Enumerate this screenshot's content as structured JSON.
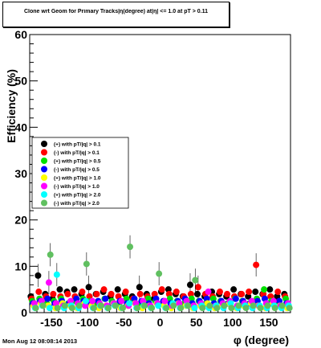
{
  "title": "Clone wrt Geom for Primary Tracks|η(degree) at|η| <= 1.0 at pT > 0.11",
  "footer": "Mon Aug 12 08:08:14 2013",
  "chart_data": {
    "type": "scatter",
    "xlabel": "φ (degree)",
    "ylabel": "Efficiency (%)",
    "xlim": [
      -180,
      180
    ],
    "ylim": [
      0,
      60
    ],
    "xticks": [
      -150,
      -100,
      -50,
      0,
      50,
      100,
      150
    ],
    "yticks": [
      0,
      10,
      20,
      30,
      40,
      50,
      60
    ],
    "grid": false,
    "legend_position": "left-middle",
    "series": [
      {
        "name": "(+) with pT/|q| > 0.1",
        "color": "#000000",
        "x": [
          -175,
          -165,
          -155,
          -145,
          -135,
          -125,
          -115,
          -105,
          -95,
          -85,
          -75,
          -65,
          -55,
          -45,
          -35,
          -25,
          -15,
          -5,
          5,
          15,
          25,
          35,
          45,
          55,
          65,
          75,
          85,
          95,
          105,
          115,
          125,
          135,
          145,
          155,
          165,
          175
        ],
        "y": [
          3.5,
          8.0,
          4.0,
          3.0,
          5.0,
          4.5,
          5.0,
          4.0,
          5.5,
          4.0,
          4.5,
          3.5,
          5.0,
          4.0,
          3.5,
          5.5,
          4.0,
          3.0,
          4.5,
          5.0,
          4.0,
          3.5,
          6.0,
          4.0,
          3.5,
          4.5,
          4.0,
          3.5,
          5.0,
          4.0,
          3.5,
          4.5,
          4.0,
          5.0,
          3.5,
          4.0
        ]
      },
      {
        "name": "(-) with pT/|q| > 0.1",
        "color": "#ff0000",
        "x": [
          -175,
          -165,
          -155,
          -145,
          -135,
          -125,
          -115,
          -105,
          -95,
          -85,
          -75,
          -65,
          -55,
          -45,
          -35,
          -25,
          -15,
          -5,
          5,
          15,
          25,
          35,
          45,
          55,
          65,
          75,
          85,
          95,
          105,
          115,
          125,
          135,
          145,
          155,
          165,
          175
        ],
        "y": [
          3.0,
          4.5,
          3.5,
          4.0,
          3.5,
          4.0,
          3.5,
          4.5,
          3.5,
          4.0,
          5.0,
          4.0,
          3.5,
          4.5,
          3.0,
          4.0,
          3.5,
          4.0,
          5.0,
          4.0,
          4.5,
          3.5,
          4.0,
          5.5,
          4.0,
          3.5,
          4.5,
          4.0,
          3.5,
          4.0,
          4.5,
          10.3,
          4.0,
          3.5,
          4.5,
          3.5
        ]
      },
      {
        "name": "(+) with pT/|q| > 0.5",
        "color": "#00e000",
        "x": [
          -175,
          -165,
          -155,
          -145,
          -135,
          -125,
          -115,
          -105,
          -95,
          -85,
          -75,
          -65,
          -55,
          -45,
          -35,
          -25,
          -15,
          -5,
          5,
          15,
          25,
          35,
          45,
          55,
          65,
          75,
          85,
          95,
          105,
          115,
          125,
          135,
          145,
          155,
          165,
          175
        ],
        "y": [
          2.5,
          3.0,
          2.0,
          2.5,
          3.0,
          2.0,
          2.5,
          3.0,
          2.5,
          2.0,
          3.0,
          2.5,
          2.0,
          3.0,
          2.5,
          2.0,
          3.0,
          2.5,
          2.0,
          3.0,
          2.5,
          2.0,
          3.0,
          2.5,
          2.0,
          3.0,
          2.5,
          2.0,
          3.0,
          2.5,
          2.0,
          3.0,
          5.0,
          2.5,
          2.0,
          3.0
        ]
      },
      {
        "name": "(-) with pT/|q| > 0.5",
        "color": "#0000ff",
        "x": [
          -175,
          -165,
          -155,
          -145,
          -135,
          -125,
          -115,
          -105,
          -95,
          -85,
          -75,
          -65,
          -55,
          -45,
          -35,
          -25,
          -15,
          -5,
          5,
          15,
          25,
          35,
          45,
          55,
          65,
          75,
          85,
          95,
          105,
          115,
          125,
          135,
          145,
          155,
          165,
          175
        ],
        "y": [
          2.0,
          2.5,
          3.0,
          2.0,
          2.5,
          2.0,
          3.0,
          2.5,
          2.0,
          2.5,
          3.0,
          2.0,
          2.5,
          2.0,
          3.0,
          2.5,
          2.0,
          3.0,
          2.5,
          2.0,
          2.5,
          3.0,
          2.0,
          2.5,
          3.0,
          2.0,
          2.5,
          2.0,
          3.0,
          2.5,
          2.0,
          2.5,
          3.0,
          2.0,
          2.5,
          2.0
        ]
      },
      {
        "name": "(+) with pT/|q| > 1.0",
        "color": "#ffff00",
        "x": [
          -175,
          -165,
          -155,
          -145,
          -135,
          -125,
          -115,
          -105,
          -95,
          -85,
          -75,
          -65,
          -55,
          -45,
          -35,
          -25,
          -15,
          -5,
          5,
          15,
          25,
          35,
          45,
          55,
          65,
          75,
          85,
          95,
          105,
          115,
          125,
          135,
          145,
          155,
          165,
          175
        ],
        "y": [
          1.5,
          2.0,
          1.5,
          1.0,
          2.0,
          1.5,
          1.0,
          2.0,
          1.5,
          1.0,
          1.5,
          2.0,
          1.0,
          1.5,
          2.0,
          1.0,
          1.5,
          2.0,
          1.5,
          1.0,
          2.0,
          1.5,
          1.0,
          1.5,
          2.0,
          1.0,
          1.5,
          2.0,
          1.0,
          1.5,
          2.0,
          1.5,
          1.0,
          2.0,
          1.5,
          1.0
        ]
      },
      {
        "name": "(-) with pT/|q| > 1.0",
        "color": "#ff00ff",
        "x": [
          -175,
          -165,
          -155,
          -145,
          -135,
          -125,
          -115,
          -105,
          -95,
          -85,
          -75,
          -65,
          -55,
          -45,
          -35,
          -25,
          -15,
          -5,
          5,
          15,
          25,
          35,
          45,
          55,
          65,
          75,
          85,
          95,
          105,
          115,
          125,
          135,
          145,
          155,
          165,
          175
        ],
        "y": [
          2.0,
          2.5,
          6.5,
          2.0,
          1.5,
          2.5,
          2.0,
          1.5,
          2.5,
          2.0,
          1.5,
          2.0,
          2.5,
          1.5,
          2.0,
          2.5,
          1.5,
          2.0,
          2.5,
          1.5,
          2.0,
          2.5,
          1.5,
          2.0,
          4.5,
          1.5,
          2.0,
          2.5,
          1.5,
          2.0,
          2.5,
          1.5,
          2.0,
          2.5,
          1.5,
          2.0
        ]
      },
      {
        "name": "(+) with pT/|q| > 2.0",
        "color": "#00ffff",
        "x": [
          -175,
          -165,
          -155,
          -145,
          -135,
          -125,
          -115,
          -105,
          -95,
          -85,
          -75,
          -65,
          -55,
          -45,
          -35,
          -25,
          -15,
          -5,
          5,
          15,
          25,
          35,
          45,
          55,
          65,
          75,
          85,
          95,
          105,
          115,
          125,
          135,
          145,
          155,
          165,
          175
        ],
        "y": [
          1.0,
          1.5,
          1.0,
          8.2,
          1.0,
          1.5,
          1.0,
          2.5,
          1.0,
          1.5,
          1.0,
          1.5,
          1.0,
          2.0,
          1.0,
          1.5,
          1.0,
          1.5,
          1.0,
          2.0,
          1.0,
          1.5,
          1.0,
          1.5,
          1.0,
          1.5,
          1.0,
          2.0,
          1.0,
          1.5,
          1.0,
          1.5,
          1.0,
          1.5,
          1.0,
          1.5
        ]
      },
      {
        "name": "(-) with pT/|q| > 2.0",
        "color": "#60c060",
        "x": [
          -175,
          -165,
          -155,
          -145,
          -135,
          -125,
          -115,
          -105,
          -95,
          -85,
          -75,
          -65,
          -55,
          -45,
          -35,
          -25,
          -15,
          -5,
          5,
          15,
          25,
          35,
          45,
          55,
          65,
          75,
          85,
          95,
          105,
          115,
          125,
          135,
          145,
          155,
          165,
          175
        ],
        "y": [
          1.0,
          1.5,
          12.5,
          1.0,
          1.5,
          1.0,
          1.5,
          10.5,
          1.0,
          1.5,
          1.0,
          1.5,
          1.0,
          14.2,
          1.0,
          1.5,
          1.0,
          8.4,
          1.0,
          1.5,
          1.0,
          1.5,
          7.0,
          1.0,
          1.5,
          1.0,
          1.5,
          1.0,
          1.5,
          1.0,
          1.5,
          1.0,
          1.5,
          1.0,
          1.5,
          1.0
        ]
      }
    ]
  }
}
